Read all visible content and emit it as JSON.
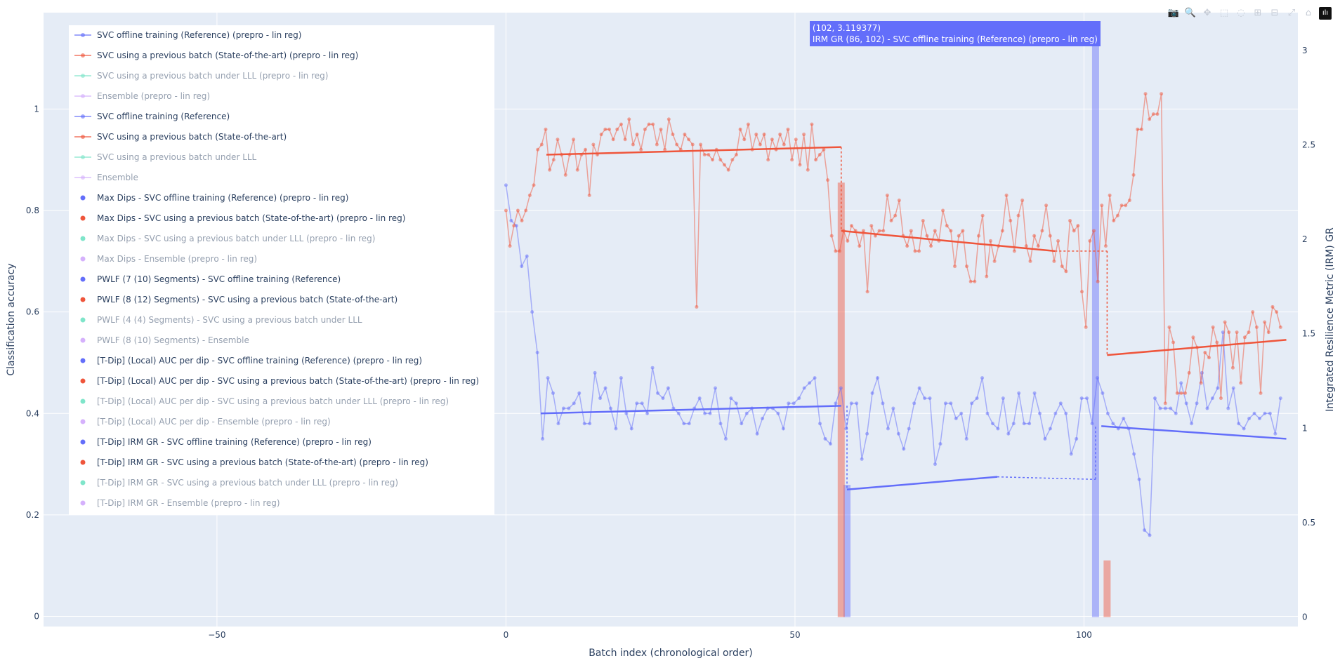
{
  "toolbar": {
    "buttons": [
      {
        "name": "camera-icon",
        "glyph": "📷"
      },
      {
        "name": "zoom-icon",
        "glyph": "🔍"
      },
      {
        "name": "pan-icon",
        "glyph": "✥"
      },
      {
        "name": "box-select-icon",
        "glyph": "⬚"
      },
      {
        "name": "lasso-select-icon",
        "glyph": "◌"
      },
      {
        "name": "zoom-in-icon",
        "glyph": "⊞"
      },
      {
        "name": "zoom-out-icon",
        "glyph": "⊟"
      },
      {
        "name": "autoscale-icon",
        "glyph": "⤢"
      },
      {
        "name": "reset-axes-icon",
        "glyph": "⌂"
      }
    ],
    "logo_glyph": "ılı"
  },
  "hover": {
    "line1": "(102, 3.119377)",
    "line2": "IRM GR (86, 102) - SVC offline training (Reference) (prepro - lin reg)",
    "color": "#636efa"
  },
  "colors": {
    "blue": "#636efa",
    "red": "#ef553b",
    "green": "#00cc96",
    "purple": "#ab63fa",
    "plot_bg": "#e5ecf6",
    "grid": "#ffffff",
    "text": "#2a3f5f"
  },
  "legend": [
    {
      "label": "SVC offline training (Reference) (prepro - lin reg)",
      "color": "#636efa",
      "kind": "line",
      "visible": true
    },
    {
      "label": "SVC using a previous batch (State-of-the-art) (prepro - lin reg)",
      "color": "#ef553b",
      "kind": "line",
      "visible": true
    },
    {
      "label": "SVC using a previous batch under LLL (prepro - lin reg)",
      "color": "#00cc96",
      "kind": "line",
      "visible": false
    },
    {
      "label": "Ensemble (prepro - lin reg)",
      "color": "#ab63fa",
      "kind": "line",
      "visible": false
    },
    {
      "label": "SVC offline training (Reference)",
      "color": "#636efa",
      "kind": "line",
      "visible": true
    },
    {
      "label": "SVC using a previous batch (State-of-the-art)",
      "color": "#ef553b",
      "kind": "line",
      "visible": true
    },
    {
      "label": "SVC using a previous batch under LLL",
      "color": "#00cc96",
      "kind": "line",
      "visible": false
    },
    {
      "label": "Ensemble",
      "color": "#ab63fa",
      "kind": "line",
      "visible": false
    },
    {
      "label": "Max Dips - SVC offline training (Reference) (prepro - lin reg)",
      "color": "#636efa",
      "kind": "dot",
      "visible": true
    },
    {
      "label": "Max Dips - SVC using a previous batch (State-of-the-art) (prepro - lin reg)",
      "color": "#ef553b",
      "kind": "dot",
      "visible": true
    },
    {
      "label": "Max Dips - SVC using a previous batch under LLL (prepro - lin reg)",
      "color": "#00cc96",
      "kind": "dot",
      "visible": false
    },
    {
      "label": "Max Dips - Ensemble (prepro - lin reg)",
      "color": "#ab63fa",
      "kind": "dot",
      "visible": false
    },
    {
      "label": "PWLF (7 (10) Segments) - SVC offline training (Reference)",
      "color": "#636efa",
      "kind": "dot",
      "visible": true
    },
    {
      "label": "PWLF (8 (12) Segments) - SVC using a previous batch (State-of-the-art)",
      "color": "#ef553b",
      "kind": "dot",
      "visible": true
    },
    {
      "label": "PWLF (4 (4) Segments) - SVC using a previous batch under LLL",
      "color": "#00cc96",
      "kind": "dot",
      "visible": false
    },
    {
      "label": "PWLF (8 (10) Segments) - Ensemble",
      "color": "#ab63fa",
      "kind": "dot",
      "visible": false
    },
    {
      "label": "[T-Dip] (Local) AUC per dip - SVC offline training (Reference) (prepro - lin reg)",
      "color": "#636efa",
      "kind": "dot",
      "visible": true
    },
    {
      "label": "[T-Dip] (Local) AUC per dip - SVC using a previous batch (State-of-the-art) (prepro - lin reg)",
      "color": "#ef553b",
      "kind": "dot",
      "visible": true
    },
    {
      "label": "[T-Dip] (Local) AUC per dip - SVC using a previous batch under LLL (prepro - lin reg)",
      "color": "#00cc96",
      "kind": "dot",
      "visible": false
    },
    {
      "label": "[T-Dip] (Local) AUC per dip - Ensemble (prepro - lin reg)",
      "color": "#ab63fa",
      "kind": "dot",
      "visible": false
    },
    {
      "label": "[T-Dip] IRM GR - SVC offline training (Reference) (prepro - lin reg)",
      "color": "#636efa",
      "kind": "dot",
      "visible": true
    },
    {
      "label": "[T-Dip] IRM GR - SVC using a previous batch (State-of-the-art) (prepro - lin reg)",
      "color": "#ef553b",
      "kind": "dot",
      "visible": true
    },
    {
      "label": "[T-Dip] IRM GR - SVC using a previous batch under LLL (prepro - lin reg)",
      "color": "#00cc96",
      "kind": "dot",
      "visible": false
    },
    {
      "label": "[T-Dip] IRM GR - Ensemble (prepro - lin reg)",
      "color": "#ab63fa",
      "kind": "dot",
      "visible": false
    }
  ],
  "chart_data": {
    "type": "line",
    "xlabel": "Batch index (chronological order)",
    "ylabel": "Classification accuracy",
    "y2label": "Integrated Resilience Metric (IRM) GR",
    "xlim": [
      -80,
      137
    ],
    "ylim": [
      -0.02,
      1.19
    ],
    "y2lim": [
      -0.05,
      3.2
    ],
    "x_ticks": [
      -50,
      0,
      50,
      100
    ],
    "x_tick_labels": [
      "−50",
      "0",
      "50",
      "100"
    ],
    "y_ticks": [
      0,
      0.2,
      0.4,
      0.6,
      0.8,
      1
    ],
    "y_tick_labels": [
      "0",
      "0.2",
      "0.4",
      "0.6",
      "0.8",
      "1"
    ],
    "y2_ticks": [
      0,
      0.5,
      1,
      1.5,
      2,
      2.5,
      3
    ],
    "y2_tick_labels": [
      "0",
      "0.5",
      "1",
      "1.5",
      "2",
      "2.5",
      "3"
    ],
    "grid": true,
    "legend_position": "top-left",
    "series": [
      {
        "name": "SVC offline training (Reference) (prepro - lin reg)",
        "color": "#636efa",
        "x_start": 0,
        "values": [
          0.85,
          0.78,
          0.77,
          0.69,
          0.71,
          0.6,
          0.52,
          0.35,
          0.47,
          0.44,
          0.38,
          0.41,
          0.41,
          0.42,
          0.44,
          0.38,
          0.38,
          0.48,
          0.43,
          0.45,
          0.41,
          0.37,
          0.47,
          0.4,
          0.37,
          0.42,
          0.42,
          0.4,
          0.49,
          0.44,
          0.43,
          0.45,
          0.41,
          0.4,
          0.38,
          0.38,
          0.41,
          0.43,
          0.4,
          0.4,
          0.45,
          0.38,
          0.35,
          0.43,
          0.42,
          0.38,
          0.4,
          0.41,
          0.36,
          0.39,
          0.41,
          0.41,
          0.4,
          0.37,
          0.42,
          0.42,
          0.43,
          0.45,
          0.46,
          0.47,
          0.38,
          0.35,
          0.34,
          0.42,
          0.45,
          0.37,
          0.42,
          0.42,
          0.31,
          0.36,
          0.44,
          0.47,
          0.42,
          0.37,
          0.41,
          0.36,
          0.33,
          0.37,
          0.42,
          0.45,
          0.43,
          0.43,
          0.3,
          0.34,
          0.42,
          0.42,
          0.39,
          0.4,
          0.35,
          0.42,
          0.43,
          0.47,
          0.4,
          0.38,
          0.37,
          0.43,
          0.36,
          0.38,
          0.44,
          0.38,
          0.38,
          0.44,
          0.4,
          0.35,
          0.37,
          0.4,
          0.42,
          0.4,
          0.32,
          0.35,
          0.43,
          0.43,
          0.38,
          0.47,
          0.44,
          0.4,
          0.38,
          0.37,
          0.39,
          0.37,
          0.32,
          0.27,
          0.17,
          0.16,
          0.43,
          0.41,
          0.41,
          0.41,
          0.4,
          0.46,
          0.42,
          0.38,
          0.42,
          0.48,
          0.41,
          0.43,
          0.45,
          0.56,
          0.41,
          0.45,
          0.38,
          0.37,
          0.39,
          0.4,
          0.39,
          0.4,
          0.4,
          0.36,
          0.43
        ]
      },
      {
        "name": "SVC using a previous batch (State-of-the-art) (prepro - lin reg)",
        "color": "#ef553b",
        "x_start": 0,
        "values": [
          0.8,
          0.73,
          0.77,
          0.8,
          0.78,
          0.8,
          0.83,
          0.85,
          0.92,
          0.93,
          0.96,
          0.88,
          0.9,
          0.94,
          0.91,
          0.87,
          0.91,
          0.94,
          0.88,
          0.91,
          0.92,
          0.83,
          0.93,
          0.91,
          0.95,
          0.96,
          0.96,
          0.94,
          0.96,
          0.97,
          0.94,
          0.98,
          0.93,
          0.95,
          0.92,
          0.96,
          0.97,
          0.97,
          0.93,
          0.96,
          0.92,
          0.98,
          0.95,
          0.93,
          0.92,
          0.95,
          0.94,
          0.93,
          0.61,
          0.93,
          0.91,
          0.91,
          0.9,
          0.92,
          0.9,
          0.89,
          0.88,
          0.9,
          0.91,
          0.96,
          0.94,
          0.97,
          0.92,
          0.95,
          0.93,
          0.95,
          0.9,
          0.94,
          0.92,
          0.95,
          0.93,
          0.96,
          0.9,
          0.94,
          0.89,
          0.95,
          0.88,
          0.97,
          0.9,
          0.91,
          0.92,
          0.86,
          0.75,
          0.72,
          0.72,
          0.76,
          0.74,
          0.77,
          0.76,
          0.73,
          0.76,
          0.64,
          0.77,
          0.75,
          0.76,
          0.76,
          0.83,
          0.78,
          0.79,
          0.82,
          0.75,
          0.73,
          0.76,
          0.72,
          0.72,
          0.78,
          0.75,
          0.73,
          0.76,
          0.74,
          0.8,
          0.77,
          0.76,
          0.69,
          0.75,
          0.76,
          0.69,
          0.66,
          0.66,
          0.75,
          0.79,
          0.67,
          0.74,
          0.7,
          0.73,
          0.76,
          0.83,
          0.78,
          0.72,
          0.79,
          0.82,
          0.73,
          0.7,
          0.75,
          0.73,
          0.76,
          0.81,
          0.75,
          0.7,
          0.74,
          0.69,
          0.68,
          0.78,
          0.76,
          0.77,
          0.64,
          0.57,
          0.74,
          0.76,
          0.66,
          0.81,
          0.73,
          0.83,
          0.78,
          0.79,
          0.81,
          0.81,
          0.82,
          0.87,
          0.96,
          0.96,
          1.03,
          0.98,
          0.99,
          0.99,
          1.03,
          0.42,
          0.57,
          0.54,
          0.44,
          0.44,
          0.44,
          0.48,
          0.55,
          0.53,
          0.46,
          0.52,
          0.51,
          0.57,
          0.54,
          0.43,
          0.58,
          0.56,
          0.49,
          0.56,
          0.46,
          0.55,
          0.56,
          0.6,
          0.57,
          0.44,
          0.58,
          0.56,
          0.61,
          0.6,
          0.57
        ]
      }
    ],
    "segments": [
      {
        "series": "blue-fit",
        "points": [
          [
            6,
            0.4
          ],
          [
            58,
            0.415
          ]
        ]
      },
      {
        "series": "blue-fit",
        "points": [
          [
            59,
            0.25
          ],
          [
            85,
            0.275
          ]
        ]
      },
      {
        "series": "blue-fit",
        "points": [
          [
            103,
            0.375
          ],
          [
            135,
            0.35
          ]
        ]
      },
      {
        "series": "red-fit",
        "points": [
          [
            7,
            0.91
          ],
          [
            58,
            0.925
          ]
        ]
      },
      {
        "series": "red-fit",
        "points": [
          [
            58,
            0.76
          ],
          [
            95,
            0.72
          ]
        ]
      },
      {
        "series": "red-fit",
        "points": [
          [
            104,
            0.515
          ],
          [
            135,
            0.545
          ]
        ]
      }
    ],
    "irm_bars": [
      {
        "series": "blue",
        "x": 59,
        "y2": 0.7
      },
      {
        "series": "blue",
        "x": 102,
        "y2": 3.119377
      },
      {
        "series": "red",
        "x": 58,
        "y2": 2.3
      },
      {
        "series": "red",
        "x": 104,
        "y2": 0.3
      }
    ]
  }
}
